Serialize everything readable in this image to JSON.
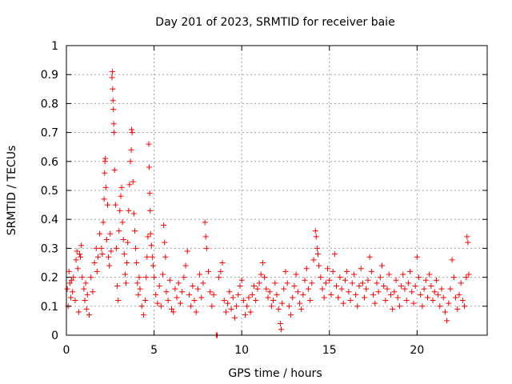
{
  "chart_data": {
    "type": "scatter",
    "title": "Day 201 of 2023, SRMTID for receiver baie",
    "xlabel": "GPS time / hours",
    "ylabel": "SRMTID / TECUs",
    "xlim": [
      0,
      24
    ],
    "ylim": [
      0,
      1
    ],
    "xticks": [
      0,
      5,
      10,
      15,
      20
    ],
    "xtick_labels": [
      "0",
      "5",
      "10",
      "15",
      "20"
    ],
    "yticks": [
      0,
      0.1,
      0.2,
      0.3,
      0.4,
      0.5,
      0.6,
      0.7,
      0.8,
      0.9,
      1
    ],
    "ytick_labels": [
      "0",
      "0.1",
      "0.2",
      "0.3",
      "0.4",
      "0.5",
      "0.6",
      "0.7",
      "0.8",
      "0.9",
      "1"
    ],
    "grid": true,
    "marker": "+",
    "color": "#ff0000",
    "series": [
      {
        "name": "SRMTID",
        "points": [
          [
            0.05,
            0.16
          ],
          [
            0.1,
            0.1
          ],
          [
            0.15,
            0.22
          ],
          [
            0.2,
            0.18
          ],
          [
            0.25,
            0.13
          ],
          [
            0.3,
            0.19
          ],
          [
            0.35,
            0.15
          ],
          [
            0.4,
            0.2
          ],
          [
            0.5,
            0.12
          ],
          [
            0.55,
            0.26
          ],
          [
            0.6,
            0.29
          ],
          [
            0.65,
            0.23
          ],
          [
            0.7,
            0.08
          ],
          [
            0.75,
            0.28
          ],
          [
            0.8,
            0.27
          ],
          [
            0.85,
            0.31
          ],
          [
            0.9,
            0.2
          ],
          [
            1.0,
            0.16
          ],
          [
            1.05,
            0.12
          ],
          [
            1.1,
            0.18
          ],
          [
            1.15,
            0.09
          ],
          [
            1.2,
            0.14
          ],
          [
            1.3,
            0.07
          ],
          [
            1.4,
            0.2
          ],
          [
            1.5,
            0.15
          ],
          [
            1.6,
            0.25
          ],
          [
            1.7,
            0.3
          ],
          [
            1.75,
            0.22
          ],
          [
            1.8,
            0.27
          ],
          [
            1.9,
            0.35
          ],
          [
            2.0,
            0.3
          ],
          [
            2.05,
            0.28
          ],
          [
            2.1,
            0.39
          ],
          [
            2.15,
            0.47
          ],
          [
            2.18,
            0.56
          ],
          [
            2.2,
            0.6
          ],
          [
            2.22,
            0.61
          ],
          [
            2.25,
            0.51
          ],
          [
            2.3,
            0.33
          ],
          [
            2.35,
            0.45
          ],
          [
            2.4,
            0.27
          ],
          [
            2.45,
            0.24
          ],
          [
            2.5,
            0.35
          ],
          [
            2.55,
            0.29
          ],
          [
            2.6,
            0.89
          ],
          [
            2.62,
            0.91
          ],
          [
            2.64,
            0.85
          ],
          [
            2.66,
            0.81
          ],
          [
            2.68,
            0.78
          ],
          [
            2.7,
            0.73
          ],
          [
            2.72,
            0.7
          ],
          [
            2.75,
            0.57
          ],
          [
            2.8,
            0.45
          ],
          [
            2.85,
            0.3
          ],
          [
            2.9,
            0.17
          ],
          [
            2.95,
            0.12
          ],
          [
            3.0,
            0.36
          ],
          [
            3.05,
            0.43
          ],
          [
            3.1,
            0.48
          ],
          [
            3.15,
            0.51
          ],
          [
            3.2,
            0.39
          ],
          [
            3.25,
            0.33
          ],
          [
            3.3,
            0.28
          ],
          [
            3.35,
            0.21
          ],
          [
            3.4,
            0.18
          ],
          [
            3.45,
            0.25
          ],
          [
            3.5,
            0.32
          ],
          [
            3.55,
            0.43
          ],
          [
            3.6,
            0.52
          ],
          [
            3.65,
            0.6
          ],
          [
            3.7,
            0.64
          ],
          [
            3.72,
            0.71
          ],
          [
            3.75,
            0.7
          ],
          [
            3.8,
            0.53
          ],
          [
            3.85,
            0.42
          ],
          [
            3.9,
            0.36
          ],
          [
            3.95,
            0.3
          ],
          [
            4.0,
            0.25
          ],
          [
            4.05,
            0.18
          ],
          [
            4.1,
            0.14
          ],
          [
            4.15,
            0.2
          ],
          [
            4.2,
            0.16
          ],
          [
            4.3,
            0.1
          ],
          [
            4.4,
            0.07
          ],
          [
            4.5,
            0.12
          ],
          [
            4.55,
            0.2
          ],
          [
            4.6,
            0.27
          ],
          [
            4.65,
            0.34
          ],
          [
            4.7,
            0.66
          ],
          [
            4.72,
            0.58
          ],
          [
            4.75,
            0.49
          ],
          [
            4.78,
            0.43
          ],
          [
            4.8,
            0.35
          ],
          [
            4.85,
            0.31
          ],
          [
            4.9,
            0.27
          ],
          [
            4.95,
            0.24
          ],
          [
            5.0,
            0.2
          ],
          [
            5.1,
            0.14
          ],
          [
            5.2,
            0.11
          ],
          [
            5.3,
            0.17
          ],
          [
            5.4,
            0.1
          ],
          [
            5.5,
            0.21
          ],
          [
            5.55,
            0.38
          ],
          [
            5.6,
            0.32
          ],
          [
            5.65,
            0.27
          ],
          [
            5.7,
            0.15
          ],
          [
            5.8,
            0.12
          ],
          [
            5.9,
            0.19
          ],
          [
            6.0,
            0.09
          ],
          [
            6.1,
            0.08
          ],
          [
            6.2,
            0.16
          ],
          [
            6.3,
            0.13
          ],
          [
            6.4,
            0.18
          ],
          [
            6.5,
            0.11
          ],
          [
            6.6,
            0.15
          ],
          [
            6.7,
            0.2
          ],
          [
            6.8,
            0.24
          ],
          [
            6.9,
            0.29
          ],
          [
            7.0,
            0.14
          ],
          [
            7.1,
            0.1
          ],
          [
            7.2,
            0.17
          ],
          [
            7.3,
            0.12
          ],
          [
            7.4,
            0.08
          ],
          [
            7.5,
            0.16
          ],
          [
            7.6,
            0.21
          ],
          [
            7.7,
            0.13
          ],
          [
            7.8,
            0.18
          ],
          [
            7.9,
            0.39
          ],
          [
            7.95,
            0.34
          ],
          [
            8.0,
            0.3
          ],
          [
            8.1,
            0.22
          ],
          [
            8.2,
            0.15
          ],
          [
            8.3,
            0.1
          ],
          [
            8.4,
            0.14
          ],
          [
            8.55,
            0.0
          ],
          [
            8.6,
            0.0
          ],
          [
            8.7,
            0.2
          ],
          [
            8.8,
            0.22
          ],
          [
            8.9,
            0.25
          ],
          [
            9.0,
            0.12
          ],
          [
            9.1,
            0.08
          ],
          [
            9.2,
            0.11
          ],
          [
            9.3,
            0.15
          ],
          [
            9.4,
            0.09
          ],
          [
            9.5,
            0.13
          ],
          [
            9.6,
            0.06
          ],
          [
            9.7,
            0.1
          ],
          [
            9.8,
            0.14
          ],
          [
            9.9,
            0.17
          ],
          [
            10.0,
            0.19
          ],
          [
            10.1,
            0.12
          ],
          [
            10.2,
            0.07
          ],
          [
            10.3,
            0.1
          ],
          [
            10.4,
            0.13
          ],
          [
            10.5,
            0.08
          ],
          [
            10.6,
            0.14
          ],
          [
            10.7,
            0.17
          ],
          [
            10.8,
            0.12
          ],
          [
            10.9,
            0.16
          ],
          [
            11.0,
            0.18
          ],
          [
            11.1,
            0.21
          ],
          [
            11.2,
            0.25
          ],
          [
            11.3,
            0.2
          ],
          [
            11.4,
            0.16
          ],
          [
            11.5,
            0.13
          ],
          [
            11.6,
            0.15
          ],
          [
            11.7,
            0.1
          ],
          [
            11.8,
            0.12
          ],
          [
            11.9,
            0.18
          ],
          [
            12.0,
            0.14
          ],
          [
            12.1,
            0.09
          ],
          [
            12.2,
            0.04
          ],
          [
            12.25,
            0.02
          ],
          [
            12.3,
            0.11
          ],
          [
            12.4,
            0.16
          ],
          [
            12.5,
            0.22
          ],
          [
            12.6,
            0.18
          ],
          [
            12.7,
            0.1
          ],
          [
            12.8,
            0.07
          ],
          [
            12.9,
            0.13
          ],
          [
            13.0,
            0.17
          ],
          [
            13.1,
            0.21
          ],
          [
            13.2,
            0.15
          ],
          [
            13.3,
            0.11
          ],
          [
            13.4,
            0.09
          ],
          [
            13.5,
            0.14
          ],
          [
            13.6,
            0.19
          ],
          [
            13.7,
            0.23
          ],
          [
            13.8,
            0.16
          ],
          [
            13.9,
            0.12
          ],
          [
            14.0,
            0.18
          ],
          [
            14.1,
            0.26
          ],
          [
            14.2,
            0.36
          ],
          [
            14.25,
            0.34
          ],
          [
            14.3,
            0.3
          ],
          [
            14.35,
            0.28
          ],
          [
            14.4,
            0.24
          ],
          [
            14.5,
            0.2
          ],
          [
            14.6,
            0.16
          ],
          [
            14.7,
            0.13
          ],
          [
            14.8,
            0.18
          ],
          [
            14.9,
            0.23
          ],
          [
            15.0,
            0.19
          ],
          [
            15.1,
            0.14
          ],
          [
            15.2,
            0.22
          ],
          [
            15.3,
            0.28
          ],
          [
            15.4,
            0.17
          ],
          [
            15.5,
            0.13
          ],
          [
            15.6,
            0.2
          ],
          [
            15.7,
            0.16
          ],
          [
            15.8,
            0.11
          ],
          [
            15.9,
            0.19
          ],
          [
            16.0,
            0.22
          ],
          [
            16.1,
            0.15
          ],
          [
            16.2,
            0.12
          ],
          [
            16.3,
            0.18
          ],
          [
            16.4,
            0.21
          ],
          [
            16.5,
            0.14
          ],
          [
            16.6,
            0.1
          ],
          [
            16.7,
            0.17
          ],
          [
            16.8,
            0.23
          ],
          [
            16.9,
            0.18
          ],
          [
            17.0,
            0.13
          ],
          [
            17.1,
            0.16
          ],
          [
            17.2,
            0.19
          ],
          [
            17.3,
            0.27
          ],
          [
            17.4,
            0.22
          ],
          [
            17.5,
            0.14
          ],
          [
            17.6,
            0.11
          ],
          [
            17.7,
            0.18
          ],
          [
            17.8,
            0.15
          ],
          [
            17.9,
            0.2
          ],
          [
            18.0,
            0.24
          ],
          [
            18.1,
            0.17
          ],
          [
            18.2,
            0.12
          ],
          [
            18.3,
            0.16
          ],
          [
            18.4,
            0.21
          ],
          [
            18.5,
            0.14
          ],
          [
            18.6,
            0.09
          ],
          [
            18.7,
            0.15
          ],
          [
            18.8,
            0.19
          ],
          [
            18.9,
            0.13
          ],
          [
            19.0,
            0.1
          ],
          [
            19.1,
            0.17
          ],
          [
            19.2,
            0.21
          ],
          [
            19.3,
            0.16
          ],
          [
            19.4,
            0.12
          ],
          [
            19.5,
            0.18
          ],
          [
            19.6,
            0.22
          ],
          [
            19.7,
            0.15
          ],
          [
            19.8,
            0.11
          ],
          [
            19.9,
            0.17
          ],
          [
            20.0,
            0.27
          ],
          [
            20.1,
            0.2
          ],
          [
            20.2,
            0.14
          ],
          [
            20.3,
            0.1
          ],
          [
            20.4,
            0.16
          ],
          [
            20.5,
            0.19
          ],
          [
            20.6,
            0.13
          ],
          [
            20.7,
            0.21
          ],
          [
            20.8,
            0.17
          ],
          [
            20.9,
            0.12
          ],
          [
            21.0,
            0.15
          ],
          [
            21.1,
            0.19
          ],
          [
            21.2,
            0.14
          ],
          [
            21.3,
            0.1
          ],
          [
            21.4,
            0.16
          ],
          [
            21.5,
            0.13
          ],
          [
            21.6,
            0.08
          ],
          [
            21.7,
            0.05
          ],
          [
            21.8,
            0.11
          ],
          [
            21.9,
            0.16
          ],
          [
            22.0,
            0.26
          ],
          [
            22.1,
            0.2
          ],
          [
            22.2,
            0.13
          ],
          [
            22.3,
            0.09
          ],
          [
            22.4,
            0.14
          ],
          [
            22.5,
            0.18
          ],
          [
            22.6,
            0.12
          ],
          [
            22.7,
            0.1
          ],
          [
            22.8,
            0.2
          ],
          [
            22.85,
            0.34
          ],
          [
            22.9,
            0.32
          ],
          [
            22.95,
            0.21
          ]
        ]
      }
    ]
  }
}
